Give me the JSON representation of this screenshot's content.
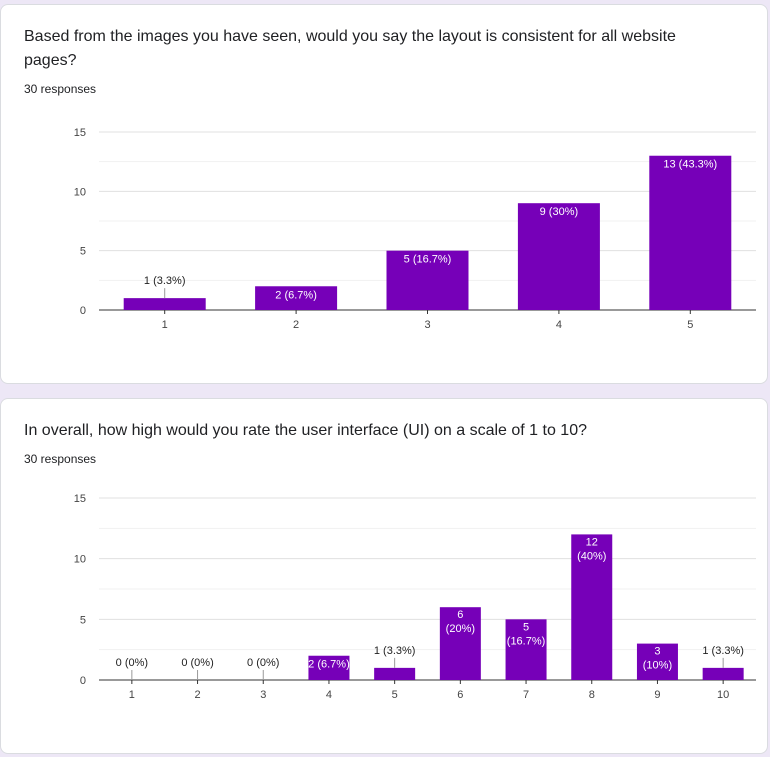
{
  "questions": [
    {
      "title": "Based from the images you have seen, would you say the layout is consistent for all website pages?",
      "responses": "30 responses"
    },
    {
      "title": "In overall, how high would you rate the user interface (UI) on a scale of 1 to 10?",
      "responses": "30 responses"
    }
  ],
  "colors": {
    "bar": "#7600b8",
    "grid": "#e6e6e6",
    "axis": "#333333",
    "label": "#222222",
    "tick": "#444444"
  },
  "chart_data": [
    {
      "type": "bar",
      "categories": [
        "1",
        "2",
        "3",
        "4",
        "5"
      ],
      "values": [
        1,
        2,
        5,
        9,
        13
      ],
      "labels": [
        "1 (3.3%)",
        "2 (6.7%)",
        "5 (16.7%)",
        "9 (30%)",
        "13 (43.3%)"
      ],
      "yticks": [
        0,
        5,
        10,
        15
      ],
      "ylim": [
        0,
        15
      ],
      "grid": true,
      "legend": "none"
    },
    {
      "type": "bar",
      "categories": [
        "1",
        "2",
        "3",
        "4",
        "5",
        "6",
        "7",
        "8",
        "9",
        "10"
      ],
      "values": [
        0,
        0,
        0,
        2,
        1,
        6,
        5,
        12,
        3,
        1
      ],
      "labels": [
        "0 (0%)",
        "0 (0%)",
        "0 (0%)",
        "2 (6.7%)",
        "1 (3.3%)",
        "6 (20%)",
        "5 (16.7%)",
        "12 (40%)",
        "3 (10%)",
        "1 (3.3%)"
      ],
      "yticks": [
        0,
        5,
        10,
        15
      ],
      "ylim": [
        0,
        15
      ],
      "grid": true,
      "legend": "none"
    }
  ]
}
